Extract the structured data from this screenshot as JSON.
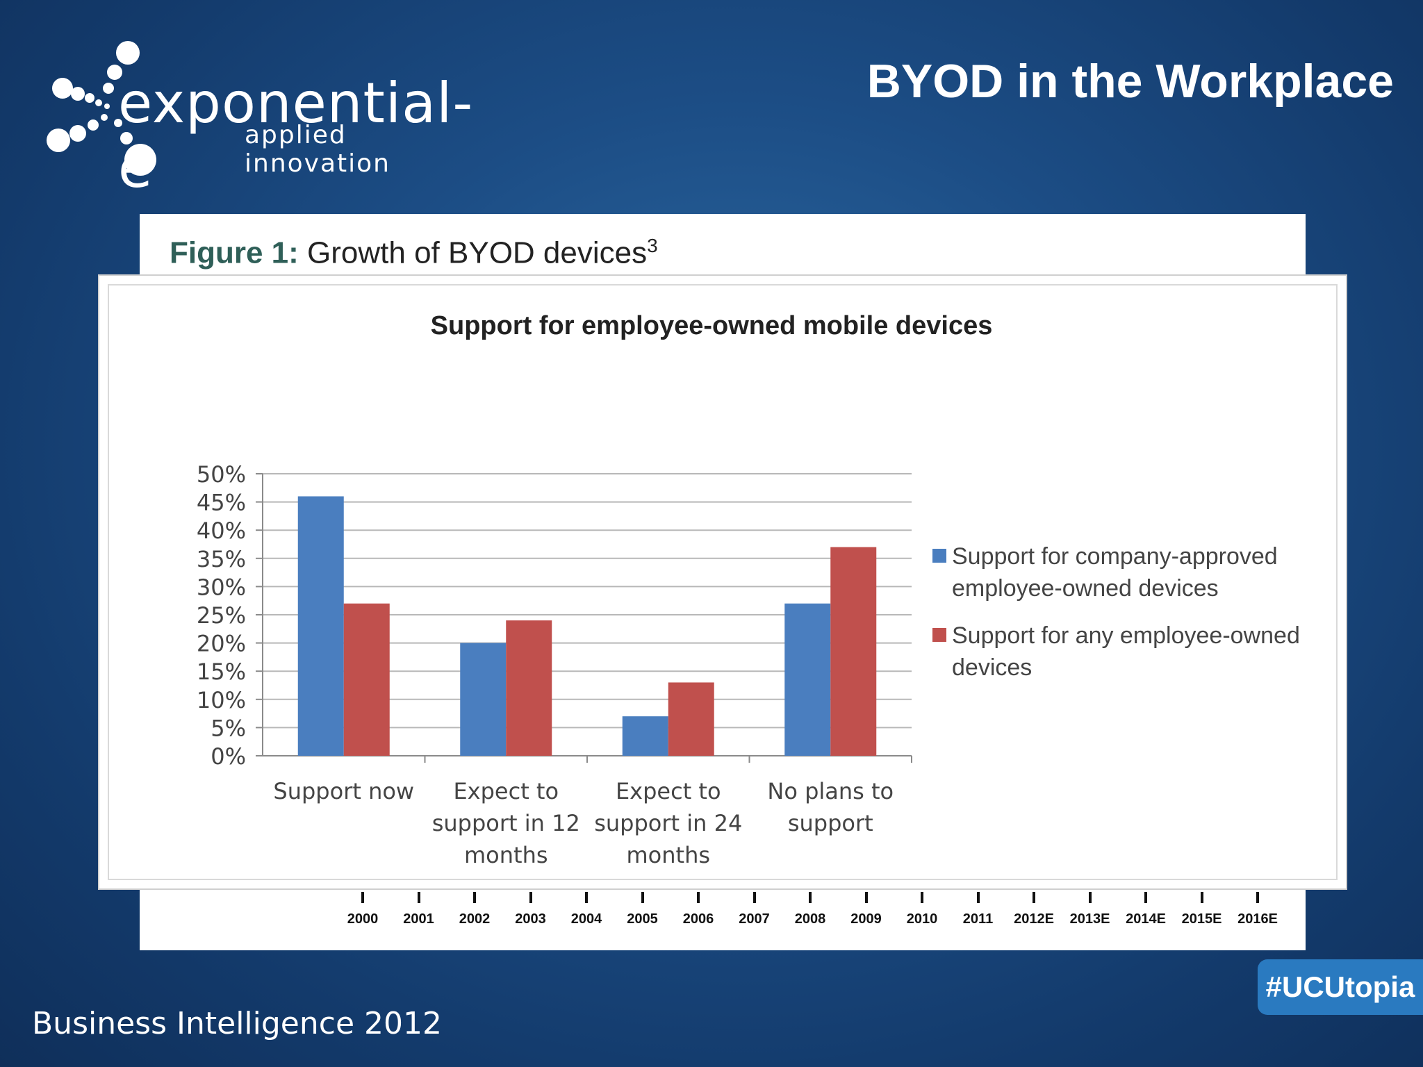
{
  "slide": {
    "title": "BYOD in the Workplace",
    "footer": "Business Intelligence 2012",
    "hashtag": "#UCUtopia"
  },
  "logo": {
    "name": "exponential-e",
    "tagline": "applied innovation"
  },
  "figure": {
    "label": "Figure 1:",
    "caption": "Growth of BYOD devices",
    "footnote": "3",
    "years": [
      "2000",
      "2001",
      "2002",
      "2003",
      "2004",
      "2005",
      "2006",
      "2007",
      "2008",
      "2009",
      "2010",
      "2011",
      "2012E",
      "2013E",
      "2014E",
      "2015E",
      "2016E"
    ]
  },
  "colors": {
    "series1": "#4a7ebf",
    "series2": "#c0504d"
  },
  "chart_data": {
    "type": "bar",
    "title": "Support for employee-owned mobile devices",
    "categories": [
      [
        "Support now"
      ],
      [
        "Expect to",
        "support in 12",
        "months"
      ],
      [
        "Expect to",
        "support in 24",
        "months"
      ],
      [
        "No plans to",
        "support"
      ]
    ],
    "series": [
      {
        "name": "Support for company-approved employee-owned devices",
        "legend_lines": [
          "Support for company-approved",
          "employee-owned devices"
        ],
        "values": [
          46,
          20,
          7,
          27
        ]
      },
      {
        "name": "Support for any employee-owned devices",
        "legend_lines": [
          "Support for any employee-owned",
          "devices"
        ],
        "values": [
          27,
          24,
          13,
          37
        ]
      }
    ],
    "ylim": [
      0,
      50
    ],
    "yticks": [
      "0%",
      "5%",
      "10%",
      "15%",
      "20%",
      "25%",
      "30%",
      "35%",
      "40%",
      "45%",
      "50%"
    ],
    "grid": true,
    "legend": "right"
  }
}
